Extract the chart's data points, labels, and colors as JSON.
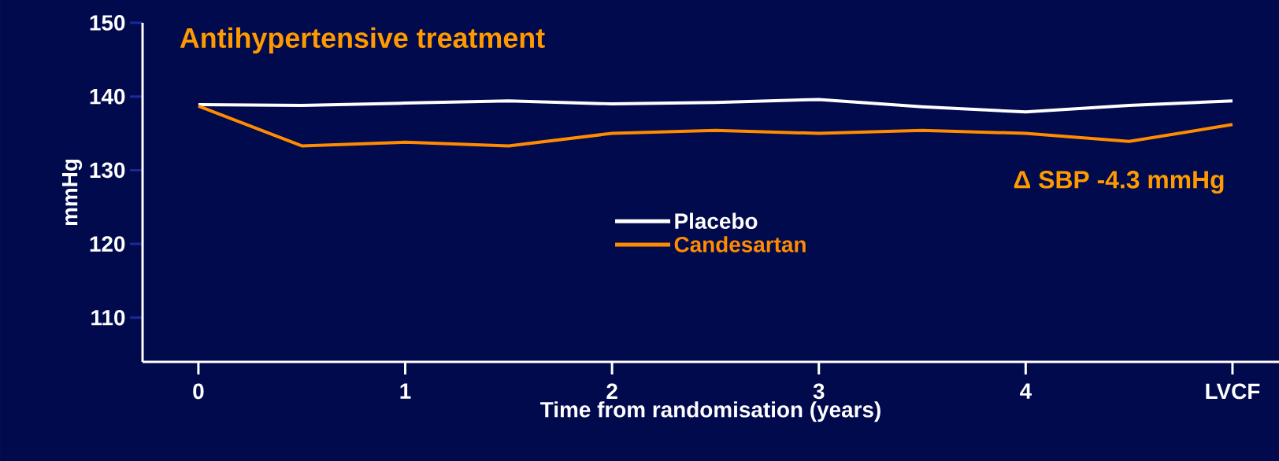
{
  "chart_data": {
    "type": "line",
    "title": "Antihypertensive treatment",
    "ylabel": "mmHg",
    "xlabel": "Time from randomisation (years)",
    "categories": [
      "0",
      null,
      "1",
      null,
      "2",
      null,
      "3",
      null,
      "4",
      null,
      "LVCF"
    ],
    "series": [
      {
        "name": "Placebo",
        "color": "#ffffff",
        "values": [
          138.9,
          138.8,
          139.1,
          139.4,
          139.0,
          139.2,
          139.6,
          138.6,
          137.9,
          138.8,
          139.4
        ]
      },
      {
        "name": "Candesartan",
        "color": "#ff8c00",
        "values": [
          138.7,
          133.3,
          133.8,
          133.3,
          135.0,
          135.4,
          135.0,
          135.4,
          135.0,
          133.9,
          136.2
        ]
      }
    ],
    "ylim": [
      104,
      150
    ],
    "yticks": [
      110,
      120,
      130,
      140,
      150
    ],
    "annotations": [
      "Δ SBP -4.3 mmHg"
    ],
    "legend": "center",
    "grid": false,
    "marker": "none",
    "line_style": "solid"
  }
}
